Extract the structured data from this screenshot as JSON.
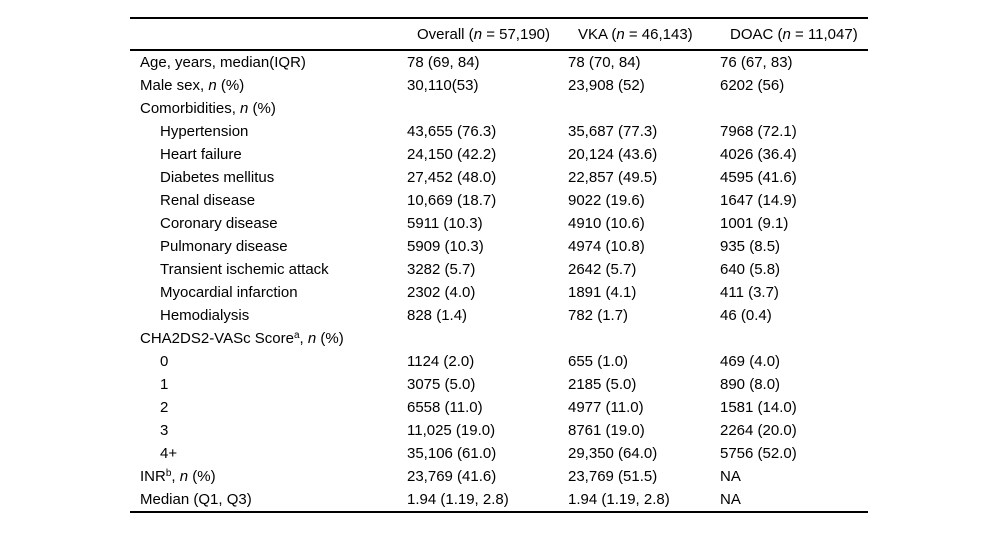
{
  "colors": {
    "text": "#000000",
    "background": "#ffffff",
    "rule": "#000000"
  },
  "table": {
    "headers": [
      {
        "segments": []
      },
      {
        "segments": [
          {
            "text": "Overall ("
          },
          {
            "text": "n",
            "style": "italic"
          },
          {
            "text": " = 57,190)"
          }
        ]
      },
      {
        "segments": [
          {
            "text": "VKA ("
          },
          {
            "text": "n",
            "style": "italic"
          },
          {
            "text": " = 46,143)"
          }
        ]
      },
      {
        "segments": [
          {
            "text": "DOAC ("
          },
          {
            "text": "n",
            "style": "italic"
          },
          {
            "text": " = 11,047)"
          }
        ]
      }
    ],
    "rows": [
      {
        "indent": 0,
        "label": [
          {
            "text": "Age, years, median(IQR)"
          }
        ],
        "cells": [
          "78 (69, 84)",
          "78 (70, 84)",
          "76 (67, 83)"
        ]
      },
      {
        "indent": 0,
        "label": [
          {
            "text": "Male sex, "
          },
          {
            "text": "n",
            "style": "italic"
          },
          {
            "text": " (%)"
          }
        ],
        "cells": [
          "30,110(53)",
          "23,908 (52)",
          "6202 (56)"
        ]
      },
      {
        "indent": 0,
        "label": [
          {
            "text": "Comorbidities, "
          },
          {
            "text": "n",
            "style": "italic"
          },
          {
            "text": " (%)"
          }
        ],
        "cells": [
          "",
          "",
          ""
        ]
      },
      {
        "indent": 1,
        "label": [
          {
            "text": "Hypertension"
          }
        ],
        "cells": [
          "43,655 (76.3)",
          "35,687 (77.3)",
          "7968 (72.1)"
        ]
      },
      {
        "indent": 1,
        "label": [
          {
            "text": "Heart failure"
          }
        ],
        "cells": [
          "24,150 (42.2)",
          "20,124 (43.6)",
          "4026 (36.4)"
        ]
      },
      {
        "indent": 1,
        "label": [
          {
            "text": "Diabetes mellitus"
          }
        ],
        "cells": [
          "27,452 (48.0)",
          "22,857 (49.5)",
          "4595 (41.6)"
        ]
      },
      {
        "indent": 1,
        "label": [
          {
            "text": "Renal disease"
          }
        ],
        "cells": [
          "10,669 (18.7)",
          "9022 (19.6)",
          "1647 (14.9)"
        ]
      },
      {
        "indent": 1,
        "label": [
          {
            "text": "Coronary disease"
          }
        ],
        "cells": [
          "5911 (10.3)",
          "4910 (10.6)",
          "1001 (9.1)"
        ]
      },
      {
        "indent": 1,
        "label": [
          {
            "text": "Pulmonary disease"
          }
        ],
        "cells": [
          "5909 (10.3)",
          "4974 (10.8)",
          "935 (8.5)"
        ]
      },
      {
        "indent": 1,
        "label": [
          {
            "text": "Transient ischemic attack"
          }
        ],
        "cells": [
          "3282 (5.7)",
          "2642 (5.7)",
          "640 (5.8)"
        ]
      },
      {
        "indent": 1,
        "label": [
          {
            "text": "Myocardial infarction"
          }
        ],
        "cells": [
          "2302 (4.0)",
          "1891 (4.1)",
          "411 (3.7)"
        ]
      },
      {
        "indent": 1,
        "label": [
          {
            "text": "Hemodialysis"
          }
        ],
        "cells": [
          "828 (1.4)",
          "782 (1.7)",
          "46 (0.4)"
        ]
      },
      {
        "indent": 0,
        "label": [
          {
            "text": "CHA2DS2-VASc Score"
          },
          {
            "text": "a",
            "style": "sup"
          },
          {
            "text": ", "
          },
          {
            "text": "n",
            "style": "italic"
          },
          {
            "text": " (%)"
          }
        ],
        "cells": [
          "",
          "",
          ""
        ]
      },
      {
        "indent": 1,
        "label": [
          {
            "text": "0"
          }
        ],
        "cells": [
          "1124 (2.0)",
          "655 (1.0)",
          "469 (4.0)"
        ]
      },
      {
        "indent": 1,
        "label": [
          {
            "text": "1"
          }
        ],
        "cells": [
          "3075 (5.0)",
          "2185 (5.0)",
          "890 (8.0)"
        ]
      },
      {
        "indent": 1,
        "label": [
          {
            "text": "2"
          }
        ],
        "cells": [
          "6558 (11.0)",
          "4977 (11.0)",
          "1581 (14.0)"
        ]
      },
      {
        "indent": 1,
        "label": [
          {
            "text": "3"
          }
        ],
        "cells": [
          "11,025 (19.0)",
          "8761 (19.0)",
          "2264 (20.0)"
        ]
      },
      {
        "indent": 1,
        "label": [
          {
            "text": "4+"
          }
        ],
        "cells": [
          "35,106 (61.0)",
          "29,350 (64.0)",
          "5756 (52.0)"
        ]
      },
      {
        "indent": 0,
        "label": [
          {
            "text": "INR"
          },
          {
            "text": "b",
            "style": "sup"
          },
          {
            "text": ", "
          },
          {
            "text": "n",
            "style": "italic"
          },
          {
            "text": " (%)"
          }
        ],
        "cells": [
          "23,769 (41.6)",
          "23,769 (51.5)",
          "NA"
        ]
      },
      {
        "indent": 0,
        "label": [
          {
            "text": "Median (Q1, Q3)"
          }
        ],
        "cells": [
          "1.94 (1.19, 2.8)",
          "1.94 (1.19, 2.8)",
          "NA"
        ]
      }
    ]
  }
}
